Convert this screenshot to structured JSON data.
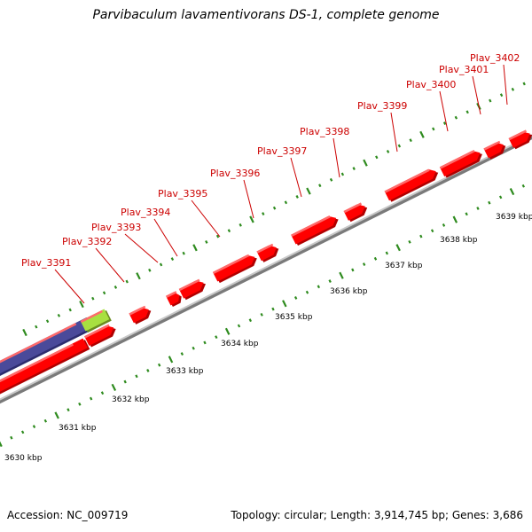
{
  "title": "Parvibaculum lavamentivorans DS-1, complete genome",
  "footer": {
    "accession_text": "Accession: NC_009719",
    "summary_text": "Topology: circular; Length: 3,914,745 bp; Genes: 3,686"
  },
  "colors": {
    "gene": "#ff0000",
    "gene_dark": "#b00000",
    "backbone": "#9a9a9a",
    "tick": "#2e8b1e",
    "label": "#cc0000",
    "purple_feature": "#4a4a9a",
    "green_feature": "#a8e040"
  },
  "genes": [
    {
      "name": "Plav_3391"
    },
    {
      "name": "Plav_3392"
    },
    {
      "name": "Plav_3393"
    },
    {
      "name": "Plav_3394"
    },
    {
      "name": "Plav_3395"
    },
    {
      "name": "Plav_3396"
    },
    {
      "name": "Plav_3397"
    },
    {
      "name": "Plav_3398"
    },
    {
      "name": "Plav_3399"
    },
    {
      "name": "Plav_3400"
    },
    {
      "name": "Plav_3401"
    },
    {
      "name": "Plav_3402"
    }
  ],
  "scale_ticks": [
    {
      "label": "3630 kbp"
    },
    {
      "label": "3631 kbp"
    },
    {
      "label": "3632 kbp"
    },
    {
      "label": "3633 kbp"
    },
    {
      "label": "3634 kbp"
    },
    {
      "label": "3635 kbp"
    },
    {
      "label": "3636 kbp"
    },
    {
      "label": "3637 kbp"
    },
    {
      "label": "3638 kbp"
    },
    {
      "label": "3639 kbp"
    }
  ]
}
